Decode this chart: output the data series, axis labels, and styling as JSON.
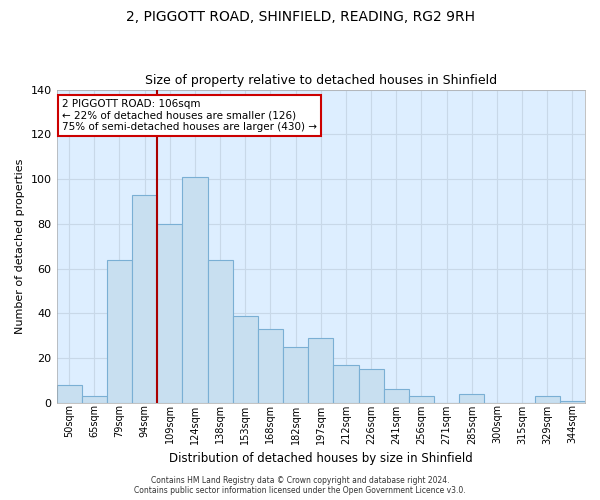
{
  "title_line1": "2, PIGGOTT ROAD, SHINFIELD, READING, RG2 9RH",
  "title_line2": "Size of property relative to detached houses in Shinfield",
  "xlabel": "Distribution of detached houses by size in Shinfield",
  "ylabel": "Number of detached properties",
  "bar_labels": [
    "50sqm",
    "65sqm",
    "79sqm",
    "94sqm",
    "109sqm",
    "124sqm",
    "138sqm",
    "153sqm",
    "168sqm",
    "182sqm",
    "197sqm",
    "212sqm",
    "226sqm",
    "241sqm",
    "256sqm",
    "271sqm",
    "285sqm",
    "300sqm",
    "315sqm",
    "329sqm",
    "344sqm"
  ],
  "bar_values": [
    8,
    3,
    64,
    93,
    80,
    101,
    64,
    39,
    33,
    25,
    29,
    17,
    15,
    6,
    3,
    0,
    4,
    0,
    0,
    3,
    1
  ],
  "bar_color": "#c8dff0",
  "bar_edge_color": "#7aafd4",
  "vline_index": 4,
  "vline_color": "#aa0000",
  "annotation_line1": "2 PIGGOTT ROAD: 106sqm",
  "annotation_line2": "← 22% of detached houses are smaller (126)",
  "annotation_line3": "75% of semi-detached houses are larger (430) →",
  "annotation_box_color": "#ffffff",
  "annotation_box_edge_color": "#cc0000",
  "ylim": [
    0,
    140
  ],
  "yticks": [
    0,
    20,
    40,
    60,
    80,
    100,
    120,
    140
  ],
  "footer_line1": "Contains HM Land Registry data © Crown copyright and database right 2024.",
  "footer_line2": "Contains public sector information licensed under the Open Government Licence v3.0.",
  "background_color": "#ffffff",
  "plot_bg_color": "#ddeeff",
  "grid_color": "#c8d8e8"
}
